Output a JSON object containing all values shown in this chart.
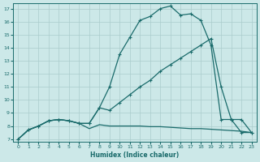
{
  "xlabel": "Humidex (Indice chaleur)",
  "bg_color": "#cce8e8",
  "grid_color": "#aacccc",
  "line_color": "#1a6b6b",
  "xlim": [
    -0.5,
    23.5
  ],
  "ylim": [
    6.8,
    17.4
  ],
  "xticks": [
    0,
    1,
    2,
    3,
    4,
    5,
    6,
    7,
    8,
    9,
    10,
    11,
    12,
    13,
    14,
    15,
    16,
    17,
    18,
    19,
    20,
    21,
    22,
    23
  ],
  "yticks": [
    7,
    8,
    9,
    10,
    11,
    12,
    13,
    14,
    15,
    16,
    17
  ],
  "line1_x": [
    0,
    1,
    2,
    3,
    4,
    5,
    6,
    7,
    8,
    9,
    10,
    11,
    12,
    13,
    14,
    15,
    16,
    17,
    18,
    19,
    20,
    21,
    22,
    23
  ],
  "line1_y": [
    7.0,
    7.7,
    8.0,
    8.4,
    8.5,
    8.4,
    8.2,
    7.8,
    8.1,
    8.0,
    8.0,
    8.0,
    8.0,
    7.95,
    7.95,
    7.9,
    7.85,
    7.8,
    7.8,
    7.75,
    7.7,
    7.65,
    7.6,
    7.5
  ],
  "line2_x": [
    0,
    1,
    2,
    3,
    4,
    5,
    6,
    7,
    8,
    9,
    10,
    11,
    12,
    13,
    14,
    15,
    16,
    17,
    18,
    19,
    20,
    21,
    22,
    23
  ],
  "line2_y": [
    7.0,
    7.7,
    8.0,
    8.4,
    8.5,
    8.4,
    8.2,
    8.2,
    9.4,
    9.2,
    9.8,
    10.4,
    11.0,
    11.5,
    12.2,
    12.7,
    13.2,
    13.7,
    14.2,
    14.7,
    11.0,
    8.5,
    8.5,
    7.5
  ],
  "line3_x": [
    0,
    1,
    2,
    3,
    4,
    5,
    6,
    7,
    8,
    9,
    10,
    11,
    12,
    13,
    14,
    15,
    16,
    17,
    18,
    19,
    20,
    21,
    22,
    23
  ],
  "line3_y": [
    7.0,
    7.7,
    8.0,
    8.4,
    8.5,
    8.4,
    8.2,
    8.2,
    9.4,
    11.0,
    13.5,
    14.8,
    16.1,
    16.4,
    17.0,
    17.2,
    16.5,
    16.6,
    16.1,
    14.2,
    8.5,
    8.5,
    7.5,
    7.5
  ]
}
